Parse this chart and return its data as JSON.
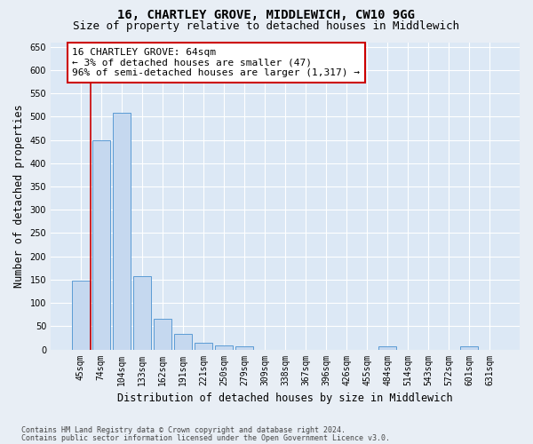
{
  "title": "16, CHARTLEY GROVE, MIDDLEWICH, CW10 9GG",
  "subtitle": "Size of property relative to detached houses in Middlewich",
  "xlabel": "Distribution of detached houses by size in Middlewich",
  "ylabel": "Number of detached properties",
  "categories": [
    "45sqm",
    "74sqm",
    "104sqm",
    "133sqm",
    "162sqm",
    "191sqm",
    "221sqm",
    "250sqm",
    "279sqm",
    "309sqm",
    "338sqm",
    "367sqm",
    "396sqm",
    "426sqm",
    "455sqm",
    "484sqm",
    "514sqm",
    "543sqm",
    "572sqm",
    "601sqm",
    "631sqm"
  ],
  "values": [
    148,
    450,
    508,
    157,
    65,
    33,
    15,
    9,
    6,
    0,
    0,
    0,
    0,
    0,
    0,
    7,
    0,
    0,
    0,
    6,
    0
  ],
  "bar_color": "#c5d8ef",
  "bar_edge_color": "#5b9bd5",
  "annotation_box_color": "#ffffff",
  "annotation_border_color": "#cc0000",
  "annotation_line1": "16 CHARTLEY GROVE: 64sqm",
  "annotation_line2": "← 3% of detached houses are smaller (47)",
  "annotation_line3": "96% of semi-detached houses are larger (1,317) →",
  "ylim": [
    0,
    660
  ],
  "yticks": [
    0,
    50,
    100,
    150,
    200,
    250,
    300,
    350,
    400,
    450,
    500,
    550,
    600,
    650
  ],
  "footer1": "Contains HM Land Registry data © Crown copyright and database right 2024.",
  "footer2": "Contains public sector information licensed under the Open Government Licence v3.0.",
  "bg_color": "#e8eef5",
  "plot_bg_color": "#dce8f5",
  "grid_color": "#ffffff",
  "title_fontsize": 10,
  "subtitle_fontsize": 9,
  "axis_label_fontsize": 8.5,
  "tick_fontsize": 7,
  "annotation_fontsize": 8,
  "red_line_x": 0.5
}
